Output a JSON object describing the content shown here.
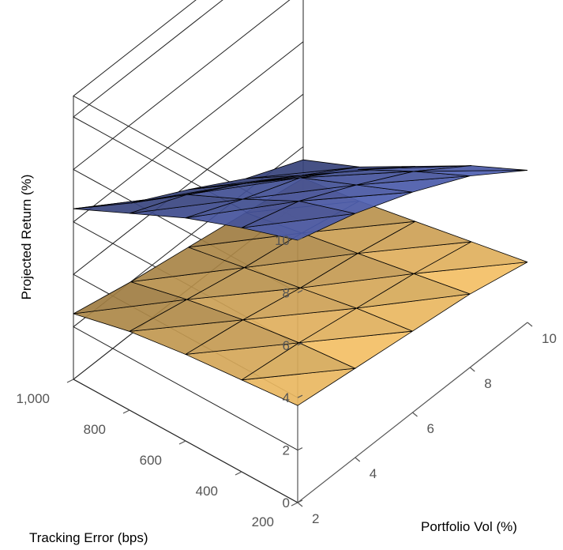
{
  "chart_data": {
    "type": "surface",
    "xlabel": "Tracking Error (bps)",
    "ylabel": "Portfolio Vol (%)",
    "zlabel": "Projected Return (%)",
    "x_ticks": [
      "200",
      "400",
      "600",
      "800",
      "1,000"
    ],
    "y_ticks": [
      "2",
      "4",
      "6",
      "8",
      "10"
    ],
    "z_ticks": [
      "0",
      "2",
      "4",
      "6",
      "8",
      "10"
    ],
    "xlim": [
      200,
      1000
    ],
    "ylim": [
      2,
      10
    ],
    "zlim": [
      0,
      10
    ],
    "grid": true,
    "series": [
      {
        "color": "#4a5aa8",
        "edge_color": "#000000",
        "x": [
          1000,
          800,
          600,
          400,
          200
        ],
        "y": [
          2,
          4,
          6,
          8,
          10
        ],
        "z": [
          [
            6.5,
            7.5,
            8.5,
            9.3,
            10.0
          ],
          [
            5.0,
            6.5,
            7.5,
            8.6,
            9.3
          ],
          [
            3.8,
            5.2,
            6.6,
            7.5,
            8.4
          ],
          [
            2.5,
            3.8,
            5.2,
            6.3,
            7.3
          ],
          [
            1.5,
            2.4,
            3.6,
            4.8,
            5.8
          ]
        ]
      },
      {
        "color": "#e6b560",
        "edge_color": "#000000",
        "x": [
          1000,
          800,
          600,
          400,
          200
        ],
        "y": [
          2,
          4,
          6,
          8,
          10
        ],
        "z": [
          [
            2.5,
            3.0,
            3.3,
            3.5,
            3.7
          ],
          [
            2.0,
            2.5,
            2.9,
            3.2,
            3.4
          ],
          [
            1.6,
            2.0,
            2.4,
            2.8,
            3.1
          ],
          [
            1.2,
            1.6,
            2.0,
            2.4,
            2.8
          ],
          [
            0.8,
            1.1,
            1.5,
            1.9,
            2.3
          ]
        ]
      }
    ]
  }
}
